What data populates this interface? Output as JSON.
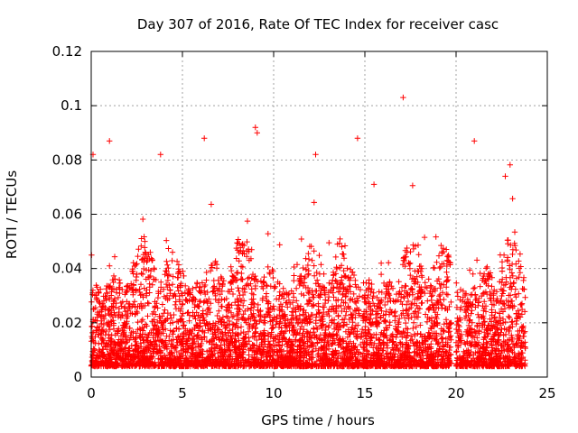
{
  "chart_data": {
    "type": "scatter",
    "title": "Day 307 of 2016, Rate Of TEC Index for receiver casc",
    "xlabel": "GPS time / hours",
    "ylabel": "ROTI / TECUs",
    "xlim": [
      0,
      25
    ],
    "ylim": [
      0,
      0.12
    ],
    "xticks": [
      0,
      5,
      10,
      15,
      20,
      25
    ],
    "xtick_labels": [
      "0",
      "5",
      "10",
      "15",
      "20",
      "25"
    ],
    "yticks": [
      0,
      0.02,
      0.04,
      0.06,
      0.08,
      0.1,
      0.12
    ],
    "ytick_labels": [
      "0",
      "0.02",
      "0.04",
      "0.06",
      "0.08",
      "0.1",
      "0.12"
    ],
    "grid": true,
    "marker": "+",
    "color": "#ff0000",
    "data_gap_hours": [
      19.75,
      20.0
    ],
    "x_range_of_data": [
      0,
      23.8
    ],
    "notable_points": [
      {
        "x": 0.1,
        "y": 0.082
      },
      {
        "x": 1.0,
        "y": 0.087
      },
      {
        "x": 3.8,
        "y": 0.082
      },
      {
        "x": 6.2,
        "y": 0.088
      },
      {
        "x": 9.0,
        "y": 0.092
      },
      {
        "x": 9.1,
        "y": 0.09
      },
      {
        "x": 12.3,
        "y": 0.082
      },
      {
        "x": 14.6,
        "y": 0.088
      },
      {
        "x": 15.5,
        "y": 0.071
      },
      {
        "x": 17.1,
        "y": 0.103
      },
      {
        "x": 21.0,
        "y": 0.087
      },
      {
        "x": 22.7,
        "y": 0.074
      }
    ]
  }
}
